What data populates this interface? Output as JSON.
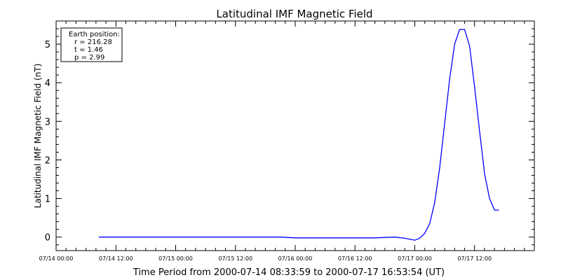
{
  "chart_data": {
    "type": "line",
    "title": "Latitudinal IMF Magnetic Field",
    "xlabel": "Time Period from 2000-07-14 08:33:59 to 2000-07-17 16:53:54 (UT)",
    "ylabel": "Latitudinal IMF Magnetic Field (nT)",
    "ylim": [
      -0.35,
      5.6
    ],
    "xlim": [
      "2000-07-14 00:00",
      "2000-07-18 00:00"
    ],
    "x_ticks": [
      "07/14 00:00",
      "07/14 12:00",
      "07/15 00:00",
      "07/15 12:00",
      "07/16 00:00",
      "07/16 12:00",
      "07/17 00:00",
      "07/17 12:00"
    ],
    "y_ticks": [
      0,
      1,
      2,
      3,
      4,
      5
    ],
    "line_color": "#0000ff",
    "legend_box": {
      "placement": "top-left",
      "lines": [
        "Earth position:",
        "r = 216.28",
        "t = 1.46",
        "p = 2.99"
      ]
    },
    "series": [
      {
        "x": [
          "2000-07-14 08:34",
          "2000-07-15 00:00",
          "2000-07-15 12:00",
          "2000-07-15 21:00",
          "2000-07-16 00:00",
          "2000-07-16 12:00",
          "2000-07-16 16:00",
          "2000-07-16 20:00",
          "2000-07-16 22:00",
          "2000-07-17 00:00",
          "2000-07-17 01:00",
          "2000-07-17 02:00",
          "2000-07-17 03:00",
          "2000-07-17 04:00",
          "2000-07-17 05:00",
          "2000-07-17 06:00",
          "2000-07-17 07:00",
          "2000-07-17 08:00",
          "2000-07-17 09:00",
          "2000-07-17 10:00",
          "2000-07-17 11:00",
          "2000-07-17 12:00",
          "2000-07-17 13:00",
          "2000-07-17 14:00",
          "2000-07-17 15:00",
          "2000-07-17 16:00",
          "2000-07-17 16:54"
        ],
        "y": [
          0,
          0,
          0,
          0,
          -0.02,
          -0.02,
          -0.02,
          0.0,
          -0.03,
          -0.08,
          -0.03,
          0.1,
          0.35,
          0.9,
          1.8,
          2.95,
          4.1,
          5.0,
          5.38,
          5.38,
          4.95,
          3.9,
          2.75,
          1.65,
          1.0,
          0.7,
          0.7
        ]
      }
    ]
  }
}
